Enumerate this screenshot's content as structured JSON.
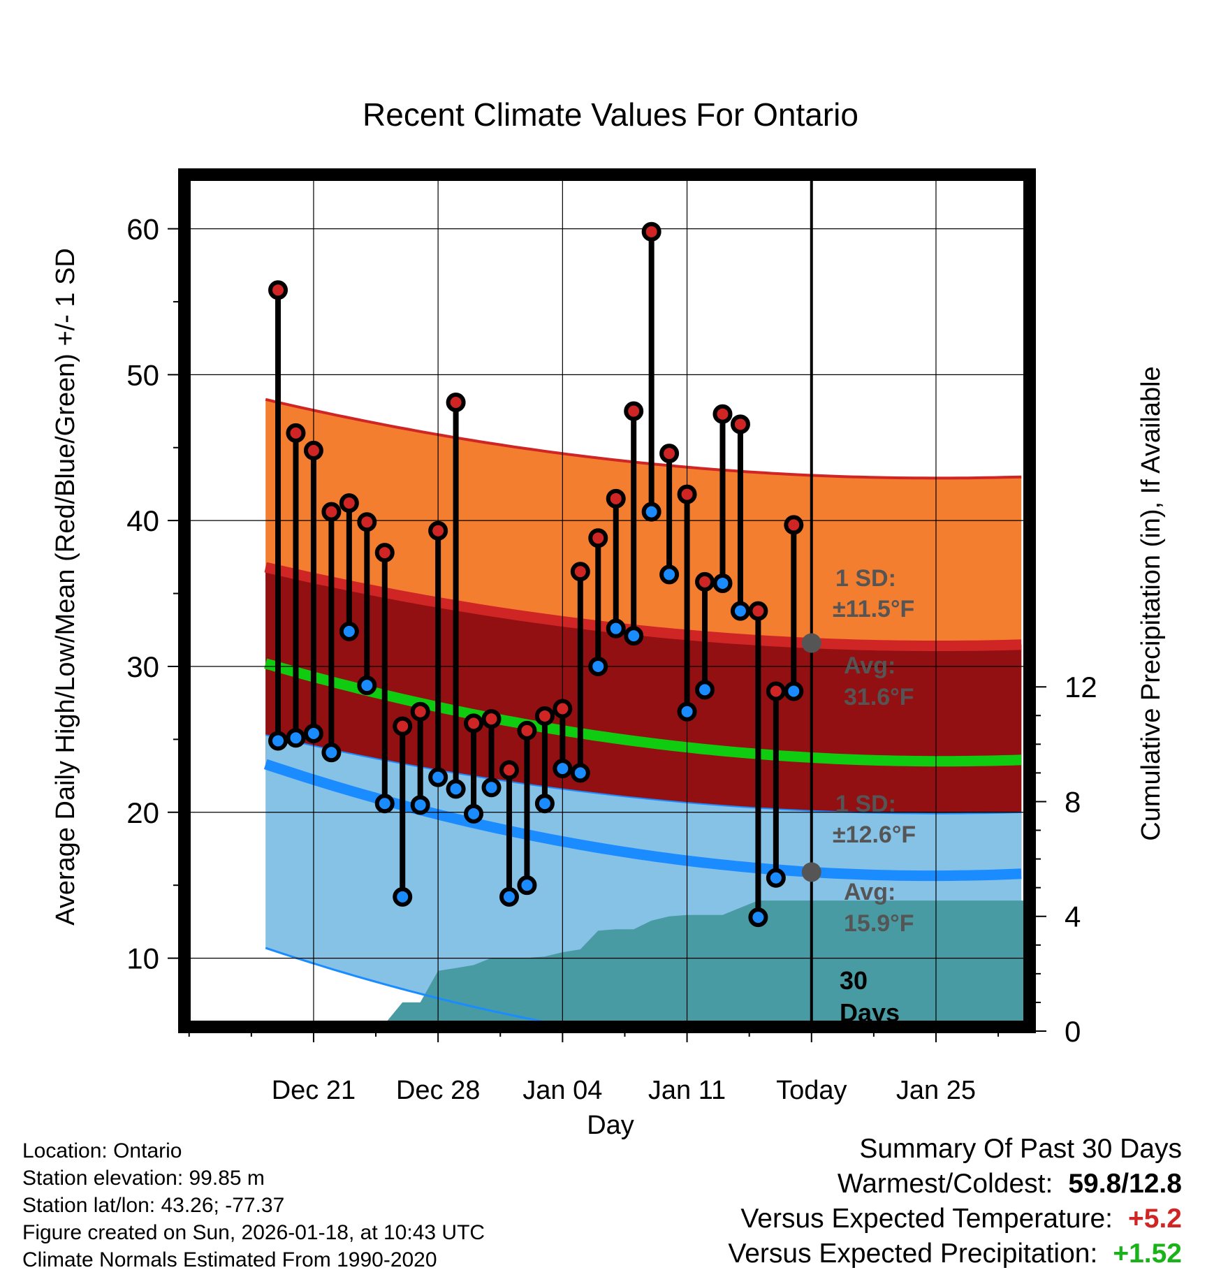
{
  "chart_data": {
    "type": "line",
    "title": "Recent Climate Values For Ontario",
    "xlabel": "Day",
    "ylabel": "Average Daily High/Low/Mean (Red/Blue/Green) +/- 1 SD",
    "y2label": "Cumulative Precipitation (in), If Available",
    "xlim": [
      -7.5,
      40.5
    ],
    "ylim": [
      5,
      64
    ],
    "y2lim": [
      0,
      30
    ],
    "x_ticks": [
      {
        "x": 0,
        "label": "Dec 21"
      },
      {
        "x": 7,
        "label": "Dec 28"
      },
      {
        "x": 14,
        "label": "Jan 04"
      },
      {
        "x": 21,
        "label": "Jan 11"
      },
      {
        "x": 28,
        "label": "Today"
      },
      {
        "x": 35,
        "label": "Jan 25"
      }
    ],
    "y_ticks": [
      10,
      20,
      30,
      40,
      50,
      60
    ],
    "y2_ticks": [
      0,
      4,
      8,
      12
    ],
    "observed": {
      "x": [
        -2,
        -1,
        0,
        1,
        2,
        3,
        4,
        5,
        6,
        7,
        8,
        9,
        10,
        11,
        12,
        13,
        14,
        15,
        16,
        17,
        18,
        19,
        20,
        21,
        22,
        23,
        24,
        25,
        26,
        27
      ],
      "high": [
        55.8,
        46.0,
        44.8,
        40.6,
        41.2,
        39.9,
        37.8,
        25.9,
        26.9,
        39.3,
        48.1,
        26.1,
        26.4,
        22.9,
        25.6,
        26.6,
        27.1,
        36.5,
        38.8,
        41.5,
        47.5,
        59.8,
        44.6,
        41.8,
        35.8,
        47.3,
        46.6,
        33.8,
        28.3,
        39.7
      ],
      "low": [
        24.9,
        25.1,
        25.4,
        24.1,
        32.4,
        28.7,
        20.6,
        14.2,
        20.5,
        22.4,
        21.6,
        19.9,
        21.7,
        14.2,
        15.0,
        20.6,
        23.0,
        22.7,
        30.0,
        32.6,
        32.1,
        40.6,
        36.3,
        26.9,
        28.4,
        35.7,
        33.8,
        12.8,
        15.5,
        28.3
      ]
    },
    "normals": {
      "x": [
        -2.7,
        28,
        40
      ],
      "high": [
        36.8,
        31.6,
        31.5
      ],
      "mean": [
        30.2,
        23.75,
        23.6
      ],
      "low": [
        23.3,
        15.9,
        15.8
      ],
      "high_sd": 11.5,
      "low_sd": 12.6
    },
    "precip": {
      "x": [
        -2,
        -1,
        0,
        1,
        2,
        3,
        4,
        5,
        6,
        7,
        8,
        9,
        10,
        11,
        12,
        13,
        14,
        15,
        16,
        17,
        18,
        19,
        20,
        21,
        22,
        23,
        24,
        25,
        26,
        27,
        28,
        40
      ],
      "values": [
        0.05,
        0.05,
        0.05,
        0.05,
        0.25,
        0.25,
        0.25,
        1.0,
        1.0,
        2.1,
        2.2,
        2.3,
        2.55,
        2.55,
        2.55,
        2.6,
        2.75,
        2.85,
        3.5,
        3.55,
        3.55,
        3.85,
        4.0,
        4.05,
        4.05,
        4.05,
        4.3,
        4.55,
        4.55,
        4.55,
        4.55,
        4.55
      ]
    },
    "today_x": 28,
    "annotations": {
      "high_sd_label": "1 SD:",
      "high_sd_value": "±11.5°F",
      "high_avg_label": "Avg:",
      "high_avg_value": "31.6°F",
      "low_sd_label": "1 SD:",
      "low_sd_value": "±12.6°F",
      "low_avg_label": "Avg:",
      "low_avg_value": "15.9°F",
      "days_number": "30",
      "days_label": "Days"
    }
  },
  "location_info": {
    "location": "Location: Ontario",
    "elevation": "Station elevation: 99.85 m",
    "latlon": "Station lat/lon: 43.26; -77.37",
    "created": "Figure created on Sun, 2026-01-18, at 10:43 UTC",
    "normals": "Climate Normals Estimated From 1990-2020"
  },
  "summary": {
    "title": "Summary Of Past 30 Days",
    "warmest_coldest_label": "Warmest/Coldest:",
    "warmest_coldest_value": "59.8/12.8",
    "temp_label": "Versus Expected Temperature:",
    "temp_value": "+5.2",
    "precip_label": "Versus Expected Precipitation:",
    "precip_value": "+1.52"
  },
  "colors": {
    "high_band": "#F47E30",
    "high_line": "#D02525",
    "mean_band": "#931012",
    "mean_line": "#10CC10",
    "low_band": "#86C1E6",
    "low_line": "#1A8CFF",
    "precip": "#489BA3",
    "high_marker": "#D02525",
    "low_marker": "#1A8CFF",
    "annotation_text": "#555555",
    "temp_delta": "#D02525",
    "precip_delta": "#19B219"
  }
}
